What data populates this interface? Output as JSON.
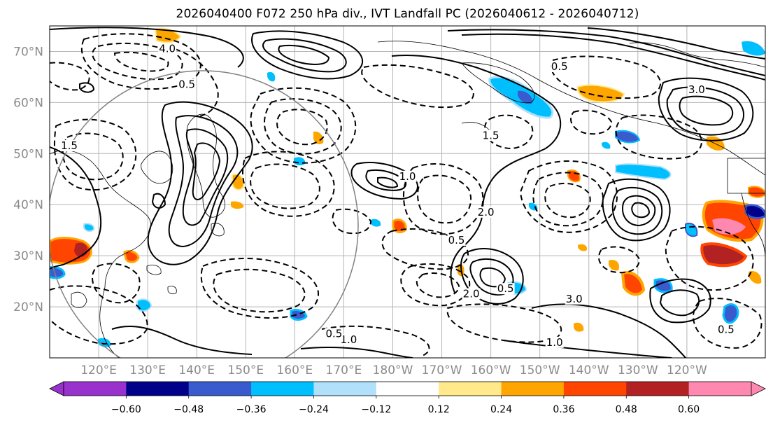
{
  "title": "2026040400 F072 250 hPa div., IVT Landfall PC (2026040612 - 2026040712)",
  "lat_labels": [
    {
      "text": "70°N",
      "lat": 70
    },
    {
      "text": "60°N",
      "lat": 60
    },
    {
      "text": "50°N",
      "lat": 50
    },
    {
      "text": "40°N",
      "lat": 40
    },
    {
      "text": "30°N",
      "lat": 30
    },
    {
      "text": "20°N",
      "lat": 20
    }
  ],
  "lon_labels": [
    {
      "text": "120°E",
      "lon": 120
    },
    {
      "text": "130°E",
      "lon": 130
    },
    {
      "text": "140°E",
      "lon": 140
    },
    {
      "text": "150°E",
      "lon": 150
    },
    {
      "text": "160°E",
      "lon": 160
    },
    {
      "text": "170°E",
      "lon": 170
    },
    {
      "text": "180°W",
      "lon": 180
    },
    {
      "text": "170°W",
      "lon": 190
    },
    {
      "text": "160°W",
      "lon": 200
    },
    {
      "text": "150°W",
      "lon": 210
    },
    {
      "text": "140°W",
      "lon": 220
    },
    {
      "text": "130°W",
      "lon": 230
    },
    {
      "text": "120°W",
      "lon": 240
    }
  ],
  "colorbar": {
    "colors": [
      "#9932cc",
      "#00008b",
      "#3a5bcd",
      "#00bfff",
      "#b0e0fa",
      "#ffffff",
      "#ffe98a",
      "#ffa500",
      "#ff4500",
      "#b22222",
      "#ff88b0"
    ],
    "extend_min_color": "#9932cc",
    "extend_max_color": "#ff88b0",
    "tick_labels": [
      "−0.60",
      "−0.48",
      "−0.36",
      "−0.24",
      "−0.12",
      "0.12",
      "0.24",
      "0.36",
      "0.48",
      "0.60"
    ]
  },
  "contour_labels": [
    {
      "text": "1.0",
      "lon": 171,
      "lat": 13
    },
    {
      "text": "0.5",
      "lon": 168,
      "lat": 14.2
    },
    {
      "text": "1.0",
      "lon": 213,
      "lat": 12.5
    },
    {
      "text": "0.5",
      "lon": 203,
      "lat": 23
    },
    {
      "text": "2.0",
      "lon": 196,
      "lat": 22
    },
    {
      "text": "0.5",
      "lon": 193,
      "lat": 32.5
    },
    {
      "text": "2.0",
      "lon": 199,
      "lat": 38
    },
    {
      "text": "1.0",
      "lon": 183,
      "lat": 45
    },
    {
      "text": "0.5",
      "lon": 214,
      "lat": 66.5
    },
    {
      "text": "4.0",
      "lon": 134,
      "lat": 70
    },
    {
      "text": "0.5",
      "lon": 138,
      "lat": 63
    },
    {
      "text": "1.5",
      "lon": 200,
      "lat": 53
    },
    {
      "text": "3.0",
      "lon": 242,
      "lat": 62
    },
    {
      "text": "3.0",
      "lon": 217,
      "lat": 21
    },
    {
      "text": "0.5",
      "lon": 248,
      "lat": 15
    },
    {
      "text": "1.5",
      "lon": 114,
      "lat": 51
    }
  ]
}
